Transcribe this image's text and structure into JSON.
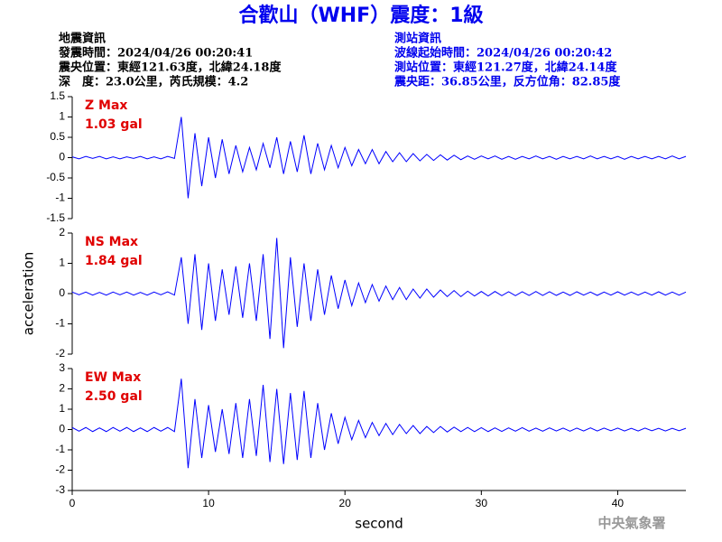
{
  "header": {
    "title": "合歡山（WHF）震度：1級",
    "left": [
      "地震資訊",
      "發震時間：2024/04/26 00:20:41",
      "震央位置：東經121.63度，北緯24.18度",
      "深　度：23.0公里，芮氏規模：4.2"
    ],
    "right": [
      "測站資訊",
      "波線起始時間：2024/04/26 00:20:42",
      "測站位置：東經121.27度，北緯24.14度",
      "震央距：36.85公里，反方位角：82.85度"
    ],
    "footer": "中央氣象署"
  },
  "chart_data": [
    {
      "type": "line",
      "annotations": [
        "Z Max",
        "1.03 gal"
      ],
      "annotation_color": "#e00000",
      "x": [
        0,
        0.5,
        1,
        1.5,
        2,
        2.5,
        3,
        3.5,
        4,
        4.5,
        5,
        5.5,
        6,
        6.5,
        7,
        7.5,
        8,
        8.5,
        9,
        9.5,
        10,
        10.5,
        11,
        11.5,
        12,
        12.5,
        13,
        13.5,
        14,
        14.5,
        15,
        15.5,
        16,
        16.5,
        17,
        17.5,
        18,
        18.5,
        19,
        19.5,
        20,
        20.5,
        21,
        21.5,
        22,
        22.5,
        23,
        23.5,
        24,
        24.5,
        25,
        25.5,
        26,
        26.5,
        27,
        27.5,
        28,
        28.5,
        29,
        29.5,
        30,
        30.5,
        31,
        31.5,
        32,
        32.5,
        33,
        33.5,
        34,
        34.5,
        35,
        35.5,
        36,
        36.5,
        37,
        37.5,
        38,
        38.5,
        39,
        39.5,
        40,
        40.5,
        41,
        41.5,
        42,
        42.5,
        43,
        43.5,
        44,
        44.5,
        45
      ],
      "series": [
        {
          "name": "Z",
          "color": "#0000ff",
          "values": [
            0.02,
            -0.03,
            0.03,
            -0.02,
            0.03,
            -0.03,
            0.02,
            -0.03,
            0.02,
            -0.02,
            0.03,
            -0.03,
            0.02,
            -0.03,
            0.03,
            -0.02,
            1.0,
            -1.0,
            0.6,
            -0.7,
            0.5,
            -0.5,
            0.45,
            -0.4,
            0.3,
            -0.35,
            0.25,
            -0.3,
            0.35,
            -0.25,
            0.5,
            -0.4,
            0.4,
            -0.35,
            0.55,
            -0.4,
            0.35,
            -0.3,
            0.3,
            -0.25,
            0.25,
            -0.2,
            0.2,
            -0.15,
            0.2,
            -0.15,
            0.15,
            -0.1,
            0.12,
            -0.1,
            0.1,
            -0.08,
            0.08,
            -0.07,
            0.07,
            -0.06,
            0.06,
            -0.05,
            0.04,
            -0.04,
            0.04,
            -0.03,
            0.04,
            -0.04,
            0.03,
            -0.04,
            0.03,
            -0.03,
            0.04,
            -0.03,
            0.03,
            -0.04,
            0.03,
            -0.03,
            0.03,
            -0.03,
            0.04,
            -0.03,
            0.03,
            -0.03,
            0.03,
            -0.04,
            0.03,
            -0.03,
            0.03,
            -0.03,
            0.03,
            -0.03,
            0.04,
            -0.03,
            0.03
          ]
        }
      ],
      "xlim": [
        0,
        45
      ],
      "ylim": [
        -1.5,
        1.5
      ],
      "yticks": [
        -1.5,
        -1,
        -0.5,
        0,
        0.5,
        1,
        1.5
      ]
    },
    {
      "type": "line",
      "annotations": [
        "NS Max",
        "1.84 gal"
      ],
      "annotation_color": "#e00000",
      "ylabel": "acceleration",
      "x": [
        0,
        0.5,
        1,
        1.5,
        2,
        2.5,
        3,
        3.5,
        4,
        4.5,
        5,
        5.5,
        6,
        6.5,
        7,
        7.5,
        8,
        8.5,
        9,
        9.5,
        10,
        10.5,
        11,
        11.5,
        12,
        12.5,
        13,
        13.5,
        14,
        14.5,
        15,
        15.5,
        16,
        16.5,
        17,
        17.5,
        18,
        18.5,
        19,
        19.5,
        20,
        20.5,
        21,
        21.5,
        22,
        22.5,
        23,
        23.5,
        24,
        24.5,
        25,
        25.5,
        26,
        26.5,
        27,
        27.5,
        28,
        28.5,
        29,
        29.5,
        30,
        30.5,
        31,
        31.5,
        32,
        32.5,
        33,
        33.5,
        34,
        34.5,
        35,
        35.5,
        36,
        36.5,
        37,
        37.5,
        38,
        38.5,
        39,
        39.5,
        40,
        40.5,
        41,
        41.5,
        42,
        42.5,
        43,
        43.5,
        44,
        44.5,
        45
      ],
      "series": [
        {
          "name": "NS",
          "color": "#0000ff",
          "values": [
            0.05,
            -0.04,
            0.05,
            -0.05,
            0.04,
            -0.05,
            0.05,
            -0.04,
            0.05,
            -0.05,
            0.04,
            -0.05,
            0.05,
            -0.04,
            0.06,
            -0.05,
            1.2,
            -1.0,
            1.3,
            -1.2,
            1.0,
            -0.9,
            0.8,
            -0.7,
            0.9,
            -0.8,
            1.0,
            -0.9,
            1.3,
            -1.5,
            1.84,
            -1.8,
            1.2,
            -1.1,
            1.0,
            -0.9,
            0.8,
            -0.7,
            0.6,
            -0.5,
            0.45,
            -0.4,
            0.35,
            -0.3,
            0.3,
            -0.25,
            0.25,
            -0.2,
            0.2,
            -0.2,
            0.15,
            -0.15,
            0.15,
            -0.12,
            0.12,
            -0.1,
            0.1,
            -0.1,
            0.08,
            -0.08,
            0.07,
            -0.08,
            0.07,
            -0.07,
            0.06,
            -0.07,
            0.06,
            -0.06,
            0.07,
            -0.06,
            0.06,
            -0.06,
            0.05,
            -0.06,
            0.06,
            -0.05,
            0.05,
            -0.06,
            0.05,
            -0.05,
            0.06,
            -0.05,
            0.05,
            -0.05,
            0.05,
            -0.05,
            0.06,
            -0.05,
            0.05,
            -0.05,
            0.05
          ]
        }
      ],
      "xlim": [
        0,
        45
      ],
      "ylim": [
        -2,
        2
      ],
      "yticks": [
        -2,
        -1,
        0,
        1,
        2
      ]
    },
    {
      "type": "line",
      "annotations": [
        "EW Max",
        "2.50 gal"
      ],
      "annotation_color": "#e00000",
      "xlabel": "second",
      "x": [
        0,
        0.5,
        1,
        1.5,
        2,
        2.5,
        3,
        3.5,
        4,
        4.5,
        5,
        5.5,
        6,
        6.5,
        7,
        7.5,
        8,
        8.5,
        9,
        9.5,
        10,
        10.5,
        11,
        11.5,
        12,
        12.5,
        13,
        13.5,
        14,
        14.5,
        15,
        15.5,
        16,
        16.5,
        17,
        17.5,
        18,
        18.5,
        19,
        19.5,
        20,
        20.5,
        21,
        21.5,
        22,
        22.5,
        23,
        23.5,
        24,
        24.5,
        25,
        25.5,
        26,
        26.5,
        27,
        27.5,
        28,
        28.5,
        29,
        29.5,
        30,
        30.5,
        31,
        31.5,
        32,
        32.5,
        33,
        33.5,
        34,
        34.5,
        35,
        35.5,
        36,
        36.5,
        37,
        37.5,
        38,
        38.5,
        39,
        39.5,
        40,
        40.5,
        41,
        41.5,
        42,
        42.5,
        43,
        43.5,
        44,
        44.5,
        45
      ],
      "series": [
        {
          "name": "EW",
          "color": "#0000ff",
          "values": [
            0.1,
            -0.08,
            0.1,
            -0.1,
            0.08,
            -0.1,
            0.1,
            -0.08,
            0.1,
            -0.1,
            0.08,
            -0.1,
            0.1,
            -0.08,
            0.1,
            -0.1,
            2.5,
            -1.9,
            1.5,
            -1.4,
            1.2,
            -1.1,
            1.0,
            -1.2,
            1.3,
            -1.4,
            1.5,
            -1.3,
            2.2,
            -1.6,
            2.0,
            -1.7,
            1.8,
            -1.5,
            1.9,
            -1.4,
            1.3,
            -1.0,
            0.8,
            -0.7,
            0.6,
            -0.5,
            0.45,
            -0.4,
            0.35,
            -0.3,
            0.3,
            -0.25,
            0.25,
            -0.2,
            0.2,
            -0.2,
            0.15,
            -0.15,
            0.15,
            -0.12,
            0.12,
            -0.1,
            0.1,
            -0.1,
            0.09,
            -0.1,
            0.08,
            -0.09,
            0.08,
            -0.08,
            0.09,
            -0.08,
            0.07,
            -0.08,
            0.08,
            -0.07,
            0.07,
            -0.08,
            0.07,
            -0.07,
            0.08,
            -0.07,
            0.07,
            -0.06,
            0.07,
            -0.07,
            0.06,
            -0.07,
            0.07,
            -0.06,
            0.06,
            -0.07,
            0.06,
            -0.06,
            0.06
          ]
        }
      ],
      "xlim": [
        0,
        45
      ],
      "ylim": [
        -3,
        3
      ],
      "yticks": [
        -3,
        -2,
        -1,
        0,
        1,
        2,
        3
      ],
      "xticks": [
        0,
        10,
        20,
        30,
        40
      ]
    }
  ]
}
